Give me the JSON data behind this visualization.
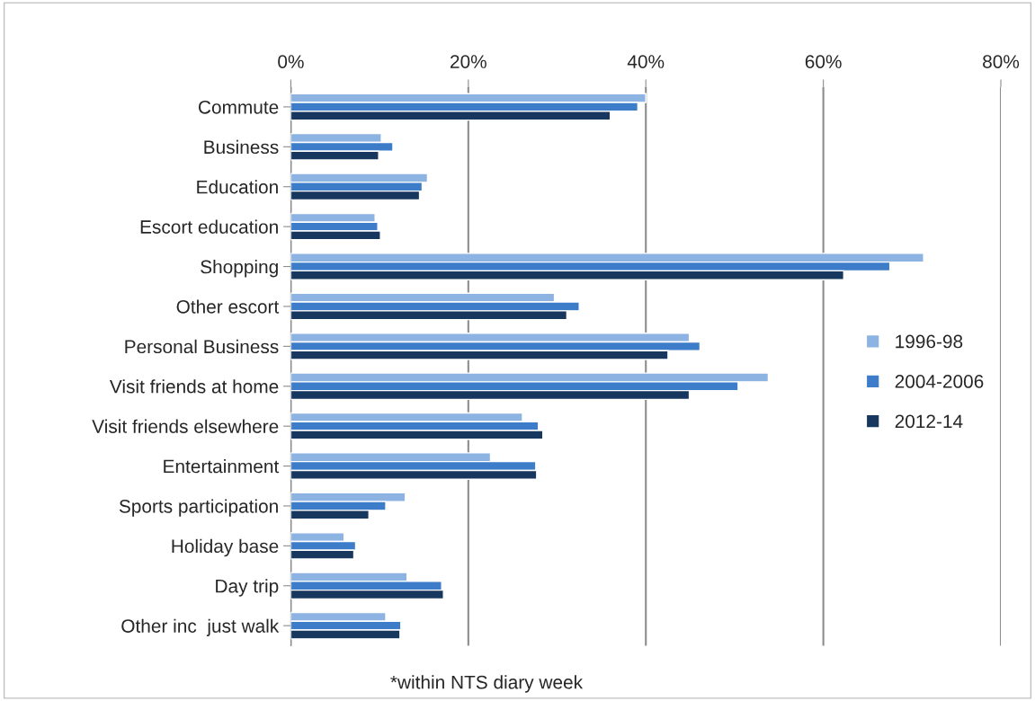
{
  "chart_data": {
    "type": "bar",
    "orientation": "horizontal",
    "categories": [
      "Commute",
      "Business",
      "Education",
      "Escort education",
      "Shopping",
      "Other escort",
      "Personal Business",
      "Visit friends at home",
      "Visit friends elsewhere",
      "Entertainment",
      "Sports participation",
      "Holiday base",
      "Day trip",
      "Other inc  just walk"
    ],
    "series": [
      {
        "name": "1996-98",
        "color": "#8db3e2",
        "values": [
          40.0,
          10.2,
          15.4,
          9.5,
          71.3,
          29.7,
          44.9,
          53.8,
          26.1,
          22.5,
          12.9,
          6.0,
          13.1,
          10.7
        ]
      },
      {
        "name": "2004-2006",
        "color": "#3d7cc9",
        "values": [
          39.1,
          11.5,
          14.8,
          9.8,
          67.5,
          32.5,
          46.1,
          50.4,
          27.9,
          27.6,
          10.7,
          7.3,
          17.0,
          12.4
        ]
      },
      {
        "name": "2012-14",
        "color": "#17375e",
        "values": [
          36.0,
          9.9,
          14.5,
          10.1,
          62.3,
          31.1,
          42.5,
          44.9,
          28.4,
          27.7,
          8.8,
          7.1,
          17.2,
          12.3
        ]
      }
    ],
    "xlim": [
      0,
      80
    ],
    "xticks": [
      {
        "value": 0,
        "label": "0%"
      },
      {
        "value": 20,
        "label": "20%"
      },
      {
        "value": 40,
        "label": "40%"
      },
      {
        "value": 60,
        "label": "60%"
      },
      {
        "value": 80,
        "label": "80%"
      }
    ],
    "grid": "x",
    "legend": "right",
    "annotations": [
      "*within NTS diary week"
    ]
  }
}
